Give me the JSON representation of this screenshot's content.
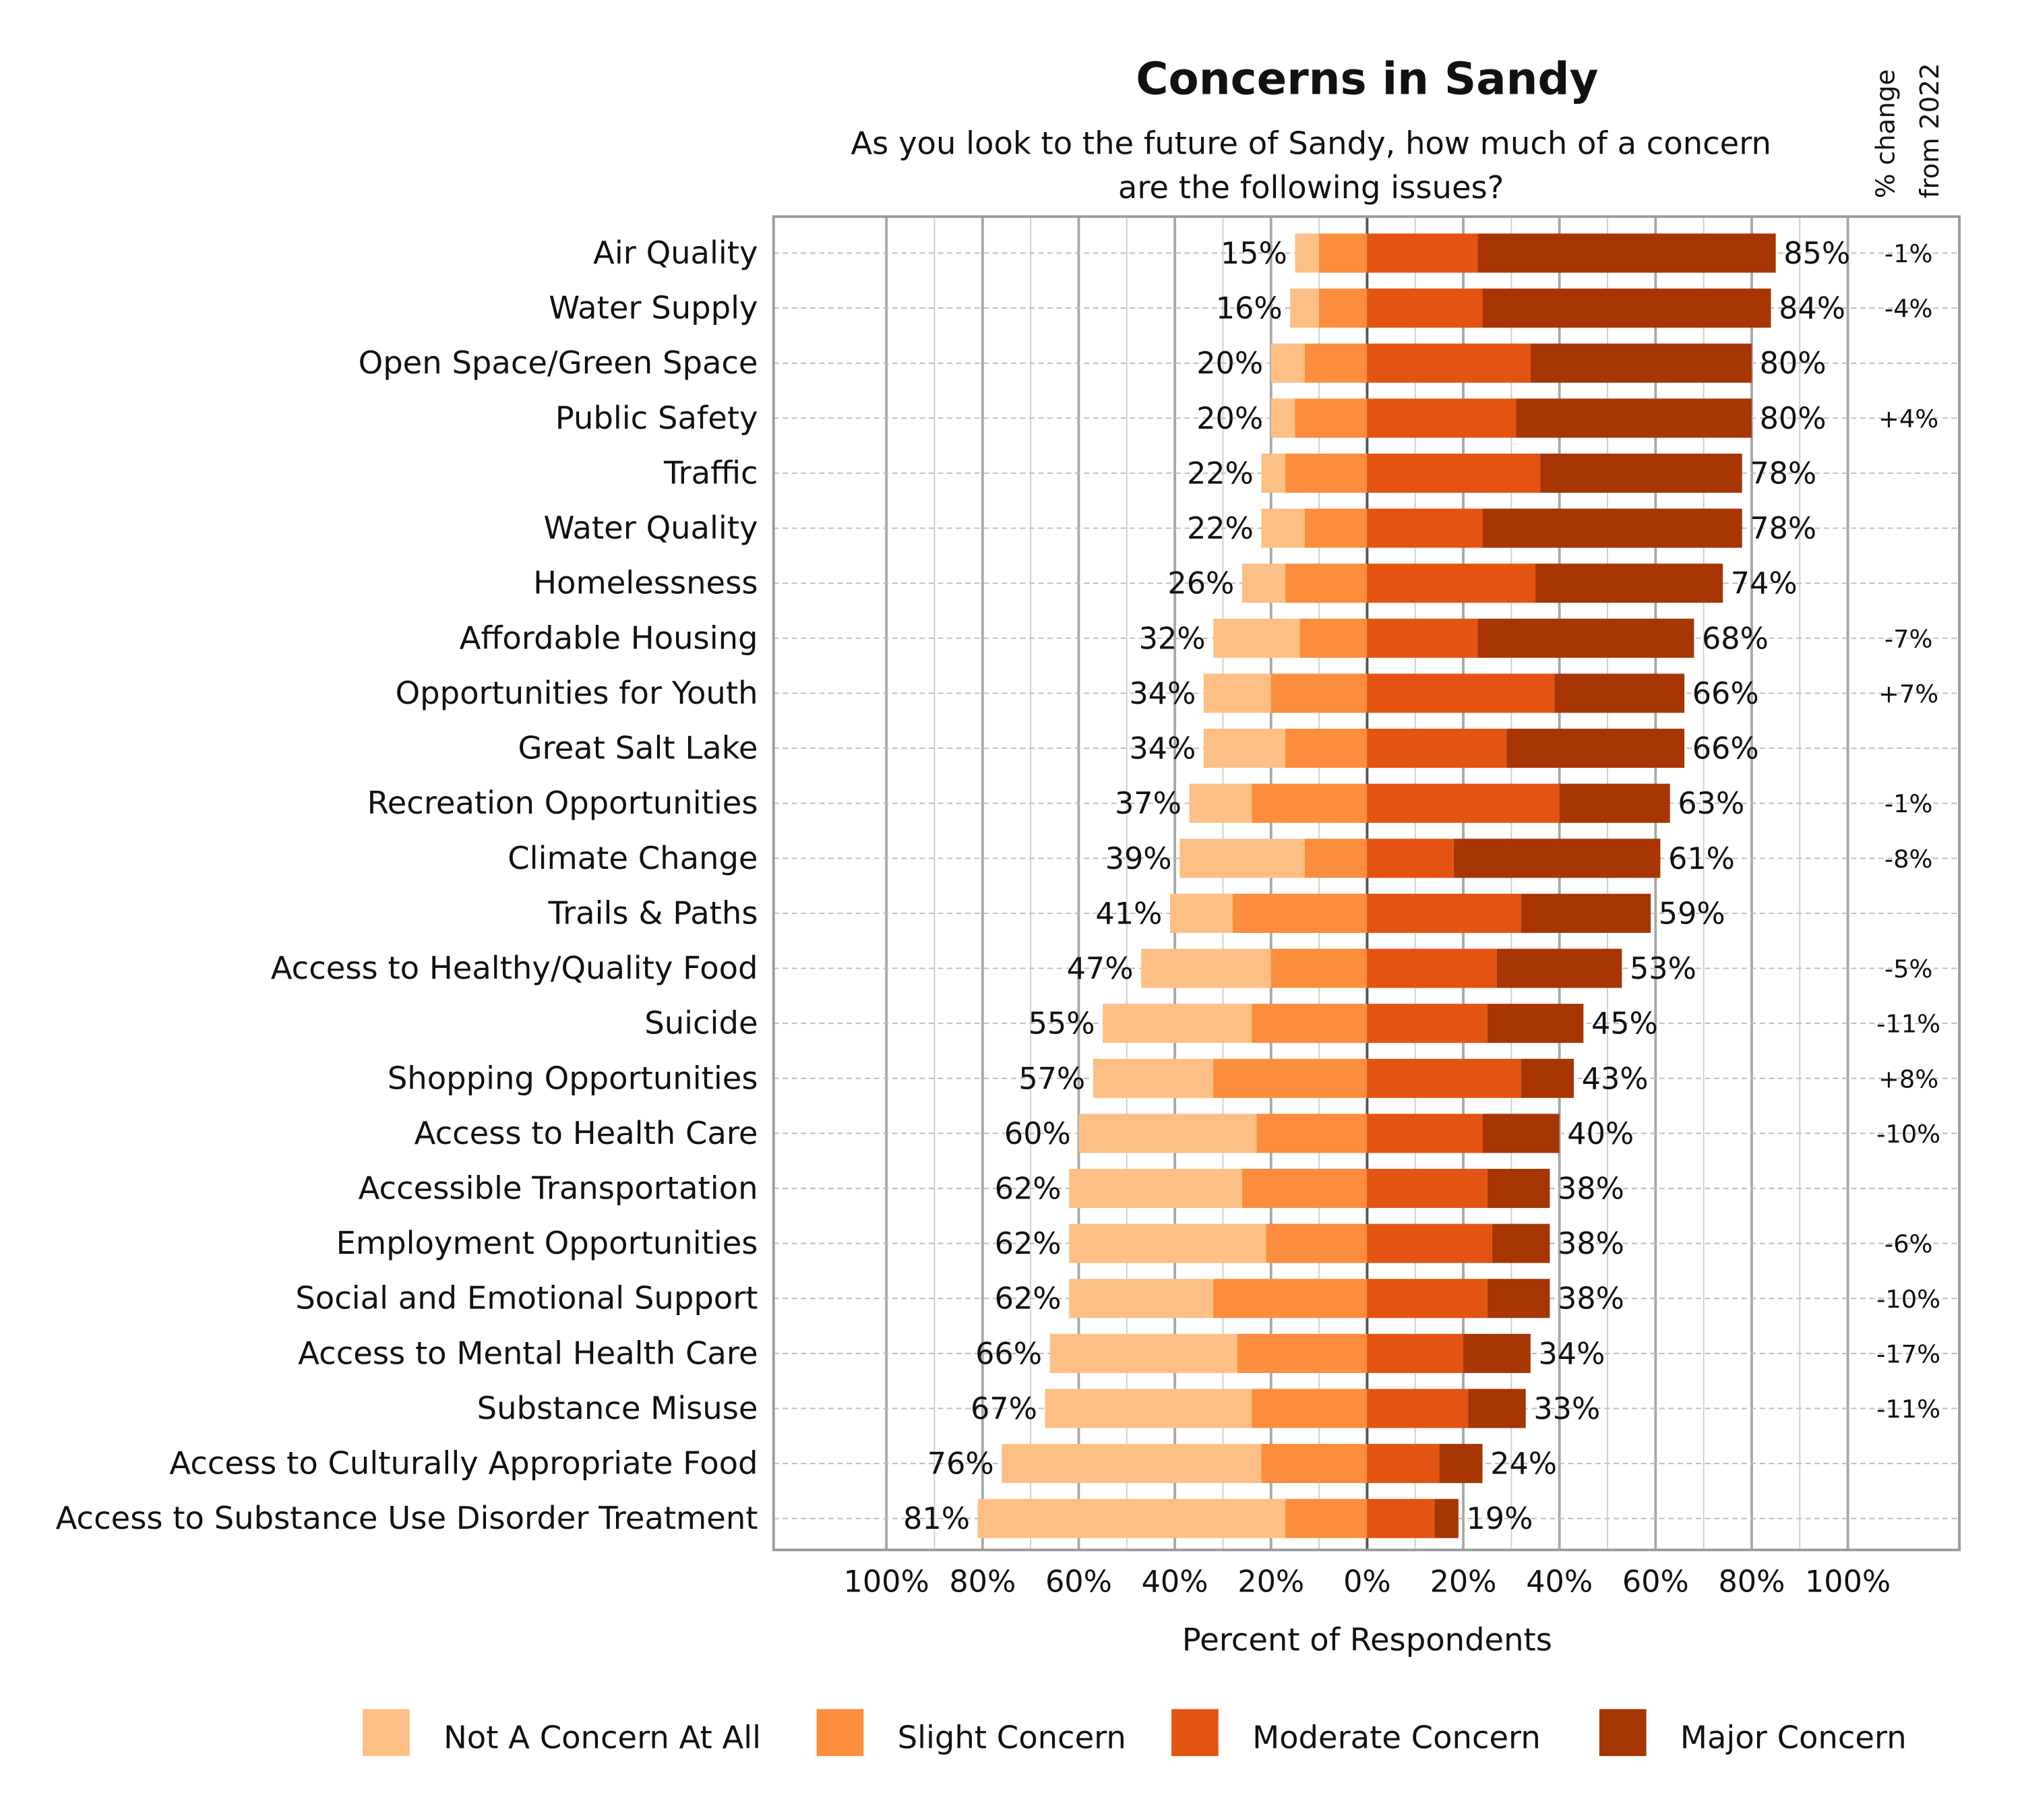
{
  "chart_data": {
    "type": "bar",
    "orientation": "horizontal",
    "stacking": "diverging",
    "title": "Concerns in Sandy",
    "subtitle_lines": [
      "As you look to the future of Sandy, how much of a concern",
      "are the following issues?"
    ],
    "xlabel": "Percent of Respondents",
    "change_header_lines": [
      "% change",
      "from 2022"
    ],
    "xlim": [
      -100,
      100
    ],
    "x_ticks": [
      "100%",
      "80%",
      "60%",
      "40%",
      "20%",
      "0%",
      "20%",
      "40%",
      "60%",
      "80%",
      "100%"
    ],
    "x_tick_values": [
      -100,
      -80,
      -60,
      -40,
      -20,
      0,
      20,
      40,
      60,
      80,
      100
    ],
    "grid": true,
    "legend_position": "bottom",
    "colors": {
      "not": "#FDBF85",
      "slight": "#FB8D3D",
      "moderate": "#E35412",
      "major": "#A73604",
      "neg_change": "#1C1CA8",
      "pos_change": "#A01010"
    },
    "series": [
      {
        "name": "Not A Concern At All",
        "key": "not"
      },
      {
        "name": "Slight Concern",
        "key": "slight"
      },
      {
        "name": "Moderate Concern",
        "key": "moderate"
      },
      {
        "name": "Major Concern",
        "key": "major"
      }
    ],
    "categories": [
      {
        "label": "Air Quality",
        "not": 5,
        "slight": 10,
        "moderate": 23,
        "major": 62,
        "left_total": "15%",
        "right_total": "85%",
        "change": "-1%"
      },
      {
        "label": "Water Supply",
        "not": 6,
        "slight": 10,
        "moderate": 24,
        "major": 60,
        "left_total": "16%",
        "right_total": "84%",
        "change": "-4%"
      },
      {
        "label": "Open Space/Green Space",
        "not": 7,
        "slight": 13,
        "moderate": 34,
        "major": 46,
        "left_total": "20%",
        "right_total": "80%",
        "change": ""
      },
      {
        "label": "Public Safety",
        "not": 5,
        "slight": 15,
        "moderate": 31,
        "major": 49,
        "left_total": "20%",
        "right_total": "80%",
        "change": "+4%"
      },
      {
        "label": "Traffic",
        "not": 5,
        "slight": 17,
        "moderate": 36,
        "major": 42,
        "left_total": "22%",
        "right_total": "78%",
        "change": ""
      },
      {
        "label": "Water Quality",
        "not": 9,
        "slight": 13,
        "moderate": 24,
        "major": 54,
        "left_total": "22%",
        "right_total": "78%",
        "change": ""
      },
      {
        "label": "Homelessness",
        "not": 9,
        "slight": 17,
        "moderate": 35,
        "major": 39,
        "left_total": "26%",
        "right_total": "74%",
        "change": ""
      },
      {
        "label": "Affordable Housing",
        "not": 18,
        "slight": 14,
        "moderate": 23,
        "major": 45,
        "left_total": "32%",
        "right_total": "68%",
        "change": "-7%"
      },
      {
        "label": "Opportunities for Youth",
        "not": 14,
        "slight": 20,
        "moderate": 39,
        "major": 27,
        "left_total": "34%",
        "right_total": "66%",
        "change": "+7%"
      },
      {
        "label": "Great Salt Lake",
        "not": 17,
        "slight": 17,
        "moderate": 29,
        "major": 37,
        "left_total": "34%",
        "right_total": "66%",
        "change": ""
      },
      {
        "label": "Recreation Opportunities",
        "not": 13,
        "slight": 24,
        "moderate": 40,
        "major": 23,
        "left_total": "37%",
        "right_total": "63%",
        "change": "-1%"
      },
      {
        "label": "Climate Change",
        "not": 26,
        "slight": 13,
        "moderate": 18,
        "major": 43,
        "left_total": "39%",
        "right_total": "61%",
        "change": "-8%"
      },
      {
        "label": "Trails & Paths",
        "not": 13,
        "slight": 28,
        "moderate": 32,
        "major": 27,
        "left_total": "41%",
        "right_total": "59%",
        "change": ""
      },
      {
        "label": "Access to Healthy/Quality Food",
        "not": 27,
        "slight": 20,
        "moderate": 27,
        "major": 26,
        "left_total": "47%",
        "right_total": "53%",
        "change": "-5%"
      },
      {
        "label": "Suicide",
        "not": 31,
        "slight": 24,
        "moderate": 25,
        "major": 20,
        "left_total": "55%",
        "right_total": "45%",
        "change": "-11%"
      },
      {
        "label": "Shopping Opportunities",
        "not": 25,
        "slight": 32,
        "moderate": 32,
        "major": 11,
        "left_total": "57%",
        "right_total": "43%",
        "change": "+8%"
      },
      {
        "label": "Access to Health Care",
        "not": 37,
        "slight": 23,
        "moderate": 24,
        "major": 16,
        "left_total": "60%",
        "right_total": "40%",
        "change": "-10%"
      },
      {
        "label": "Accessible Transportation",
        "not": 36,
        "slight": 26,
        "moderate": 25,
        "major": 13,
        "left_total": "62%",
        "right_total": "38%",
        "change": ""
      },
      {
        "label": "Employment Opportunities",
        "not": 41,
        "slight": 21,
        "moderate": 26,
        "major": 12,
        "left_total": "62%",
        "right_total": "38%",
        "change": "-6%"
      },
      {
        "label": "Social and Emotional Support",
        "not": 30,
        "slight": 32,
        "moderate": 25,
        "major": 13,
        "left_total": "62%",
        "right_total": "38%",
        "change": "-10%"
      },
      {
        "label": "Access to Mental Health Care",
        "not": 39,
        "slight": 27,
        "moderate": 20,
        "major": 14,
        "left_total": "66%",
        "right_total": "34%",
        "change": "-17%"
      },
      {
        "label": "Substance Misuse",
        "not": 43,
        "slight": 24,
        "moderate": 21,
        "major": 12,
        "left_total": "67%",
        "right_total": "33%",
        "change": "-11%"
      },
      {
        "label": "Access to Culturally Appropriate Food",
        "not": 54,
        "slight": 22,
        "moderate": 15,
        "major": 9,
        "left_total": "76%",
        "right_total": "24%",
        "change": ""
      },
      {
        "label": "Access to Substance Use Disorder Treatment",
        "not": 64,
        "slight": 17,
        "moderate": 14,
        "major": 5,
        "left_total": "81%",
        "right_total": "19%",
        "change": ""
      }
    ]
  }
}
